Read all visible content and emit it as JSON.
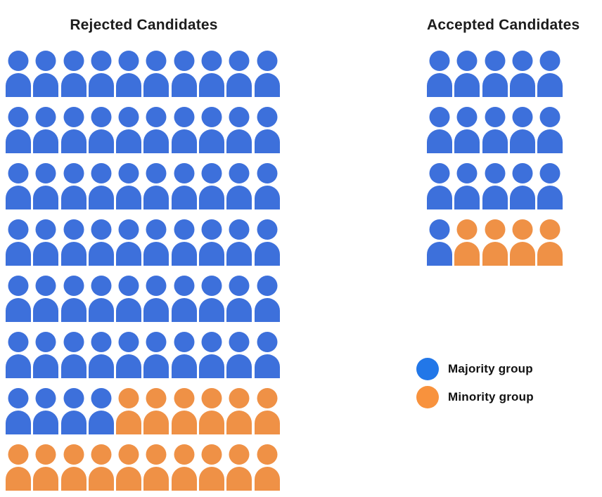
{
  "figure": {
    "background": "#ffffff"
  },
  "rejected": {
    "title": "Rejected Candidates",
    "rows": [
      "MMMMMMMMMM",
      "MMMMMMMMMM",
      "MMMMMMMMMM",
      "MMMMMMMMMM",
      "MMMMMMMMMM",
      "MMMMMMMMMM",
      "MMMMNNNNNN",
      "NNNNNNNNNN"
    ]
  },
  "accepted": {
    "title": "Accepted Candidates",
    "rows": [
      "MMMMM",
      "MMMMM",
      "MMMMM",
      "MNNNN"
    ]
  },
  "legend": {
    "items": [
      {
        "label": "Majority group",
        "color": "#2277E8"
      },
      {
        "label": "Minority group",
        "color": "#F8923D"
      }
    ]
  },
  "colors": {
    "majority_icon": "#3D70DB",
    "minority_icon": "#EF9146",
    "majority_legend": "#2277E8",
    "minority_legend": "#F8923D",
    "title_text": "#1C1C1C"
  },
  "chart_data": [
    {
      "type": "pictogram",
      "title": "Rejected Candidates",
      "categories": [
        "Majority group",
        "Minority group"
      ],
      "values": [
        64,
        16
      ],
      "total_icons": 80,
      "icons_per_row": 10,
      "rows": 8,
      "layout_note": "rows 1-6 all majority; row 7 = 4 majority then 6 minority; row 8 all minority",
      "legend_position": "right-middle",
      "grid": false
    },
    {
      "type": "pictogram",
      "title": "Accepted Candidates",
      "categories": [
        "Majority group",
        "Minority group"
      ],
      "values": [
        16,
        4
      ],
      "total_icons": 20,
      "icons_per_row": 5,
      "rows": 4,
      "layout_note": "rows 1-3 all majority; row 4 = 1 majority then 4 minority",
      "legend_position": "right-middle",
      "grid": false
    }
  ]
}
